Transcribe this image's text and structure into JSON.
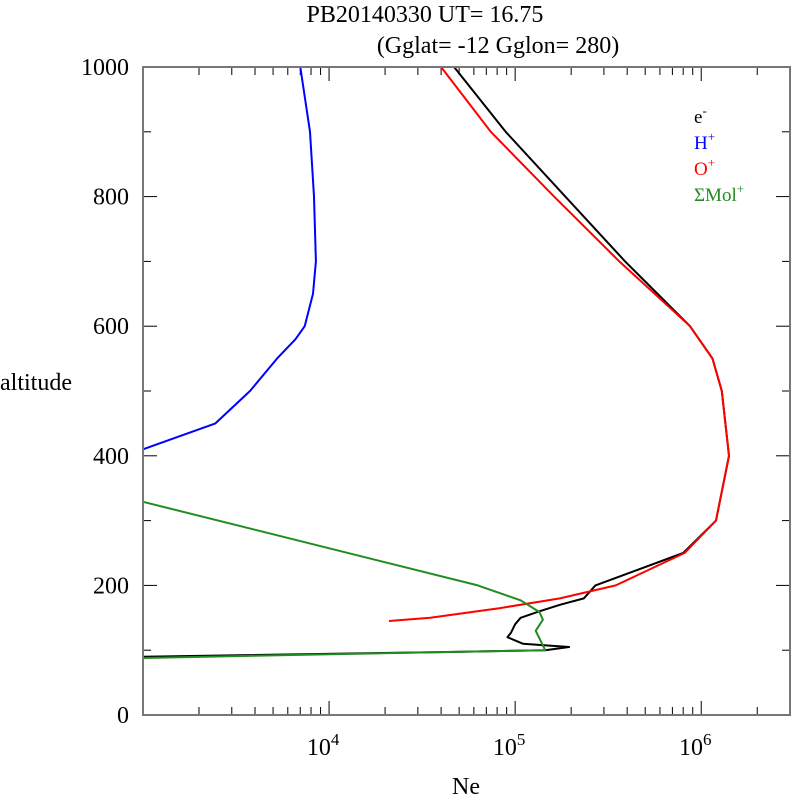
{
  "chart_data": {
    "type": "line",
    "title": "PB20140330   UT=  16.75",
    "subtitle": "(Gglat= -12   Gglon=  280)",
    "xlabel": "Ne",
    "ylabel": "altitude",
    "xscale": "log",
    "xlim": [
      1000,
      3000000
    ],
    "ylim": [
      0,
      1000
    ],
    "x_ticks": [
      {
        "value": 10000,
        "base": "10",
        "exp": "4"
      },
      {
        "value": 100000,
        "base": "10",
        "exp": "5"
      },
      {
        "value": 1000000,
        "base": "10",
        "exp": "6"
      }
    ],
    "y_ticks": [
      0,
      200,
      400,
      600,
      800,
      1000
    ],
    "legend_position": "top-right",
    "series": [
      {
        "name": "e",
        "sup": "-",
        "color": "#000000",
        "points": [
          [
            1000,
            90
          ],
          [
            40000,
            97
          ],
          [
            145000,
            100
          ],
          [
            195000,
            105
          ],
          [
            110000,
            110
          ],
          [
            91000,
            120
          ],
          [
            95000,
            127
          ],
          [
            100000,
            140
          ],
          [
            107000,
            150
          ],
          [
            135000,
            160
          ],
          [
            174000,
            170
          ],
          [
            234000,
            180
          ],
          [
            270000,
            200
          ],
          [
            800000,
            250
          ],
          [
            1200000,
            300
          ],
          [
            1410000,
            400
          ],
          [
            1290000,
            500
          ],
          [
            1150000,
            550
          ],
          [
            870000,
            600
          ],
          [
            390000,
            700
          ],
          [
            186000,
            800
          ],
          [
            89000,
            900
          ],
          [
            47000,
            1000
          ]
        ]
      },
      {
        "name": "H",
        "sup": "+",
        "color": "#0000ff",
        "points": [
          [
            1000,
            410
          ],
          [
            2450,
            450
          ],
          [
            3760,
            500
          ],
          [
            5250,
            550
          ],
          [
            6600,
            580
          ],
          [
            7400,
            600
          ],
          [
            8200,
            650
          ],
          [
            8500,
            700
          ],
          [
            8300,
            800
          ],
          [
            7900,
            900
          ],
          [
            7000,
            1000
          ]
        ]
      },
      {
        "name": "O",
        "sup": "+",
        "color": "#ff0000",
        "points": [
          [
            21000,
            145
          ],
          [
            35000,
            150
          ],
          [
            83000,
            165
          ],
          [
            174000,
            180
          ],
          [
            347000,
            200
          ],
          [
            813000,
            250
          ],
          [
            1200000,
            300
          ],
          [
            1410000,
            400
          ],
          [
            1290000,
            500
          ],
          [
            1150000,
            550
          ],
          [
            870000,
            600
          ],
          [
            363000,
            700
          ],
          [
            162000,
            800
          ],
          [
            74000,
            900
          ],
          [
            40000,
            1000
          ]
        ]
      },
      {
        "name": "ΣMol",
        "sup": "+",
        "color": "#228b22",
        "points": [
          [
            1000,
            88
          ],
          [
            40000,
            97
          ],
          [
            145000,
            100
          ],
          [
            129000,
            130
          ],
          [
            141000,
            147
          ],
          [
            135000,
            159
          ],
          [
            107000,
            177
          ],
          [
            63000,
            200
          ],
          [
            1000,
            329
          ]
        ]
      }
    ]
  }
}
